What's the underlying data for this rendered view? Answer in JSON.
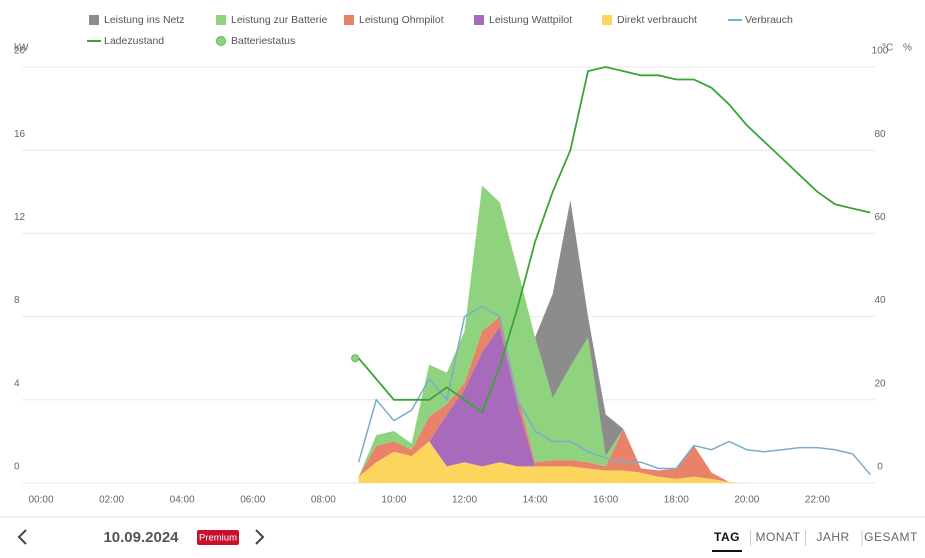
{
  "chart_data": {
    "type": "area",
    "y_label": "kW",
    "y2_label_1": "°C",
    "y2_label_2": "%",
    "x": [
      9,
      9.5,
      10,
      10.5,
      11,
      11.5,
      12,
      12.5,
      13,
      13.5,
      14,
      14.5,
      15,
      15.5,
      16,
      16.5,
      17,
      17.5,
      18,
      18.5,
      19,
      19.5,
      20,
      20.5,
      21,
      21.5,
      22,
      22.5,
      23,
      23.5
    ],
    "xlim": [
      0,
      24
    ],
    "xticks": [
      {
        "value": 0,
        "label": "00:00"
      },
      {
        "value": 2,
        "label": "02:00"
      },
      {
        "value": 4,
        "label": "04:00"
      },
      {
        "value": 6,
        "label": "06:00"
      },
      {
        "value": 8,
        "label": "08:00"
      },
      {
        "value": 10,
        "label": "10:00"
      },
      {
        "value": 12,
        "label": "12:00"
      },
      {
        "value": 14,
        "label": "14:00"
      },
      {
        "value": 16,
        "label": "16:00"
      },
      {
        "value": 18,
        "label": "18:00"
      },
      {
        "value": 20,
        "label": "20:00"
      },
      {
        "value": 22,
        "label": "22:00"
      }
    ],
    "ylim": [
      0,
      20
    ],
    "yticks": [
      0,
      4,
      8,
      12,
      16,
      20
    ],
    "y2lim": [
      0,
      100
    ],
    "y2ticks": [
      0,
      20,
      40,
      60,
      80,
      100
    ],
    "grid": true,
    "stacked": true,
    "series": [
      {
        "name": "Leistung ins Netz",
        "color": "#8c8c8c",
        "kind": "area",
        "values": [
          0,
          0,
          0,
          0,
          0,
          0,
          0,
          0,
          0,
          0,
          0,
          5,
          8,
          1,
          2,
          0,
          0,
          0,
          0,
          0,
          0,
          0,
          0,
          0,
          0,
          0,
          0,
          0,
          0,
          0
        ]
      },
      {
        "name": "Leistung zur Batterie",
        "color": "#90d37f",
        "kind": "area",
        "values": [
          0,
          0.5,
          0.5,
          0.3,
          2.5,
          1.5,
          2.5,
          7,
          5.5,
          6,
          6,
          3,
          4.5,
          6,
          0.5,
          0,
          0,
          0,
          0,
          0,
          0,
          0,
          0,
          0,
          0,
          0,
          0,
          0,
          0,
          0
        ]
      },
      {
        "name": "Leistung Ohmpilot",
        "color": "#e8836a",
        "kind": "area",
        "values": [
          0,
          0.8,
          0.5,
          0.3,
          1.2,
          0.5,
          0.3,
          1,
          0.5,
          0.5,
          0.2,
          0.3,
          0.3,
          0.3,
          0.2,
          2,
          0.2,
          0.3,
          0.5,
          1.5,
          0.3,
          0,
          0,
          0,
          0,
          0,
          0,
          0,
          0,
          0
        ]
      },
      {
        "name": "Leistung Wattpilot",
        "color": "#a86bbb",
        "kind": "area",
        "values": [
          0,
          0,
          0,
          0,
          0,
          2.5,
          3.5,
          5.5,
          6.5,
          3,
          0,
          0,
          0,
          0,
          0,
          0,
          0,
          0,
          0,
          0,
          0,
          0,
          0,
          0,
          0,
          0,
          0,
          0,
          0,
          0
        ]
      },
      {
        "name": "Direkt verbraucht",
        "color": "#fcd55c",
        "kind": "area",
        "values": [
          0.3,
          1,
          1.5,
          1.3,
          2,
          0.8,
          1,
          0.8,
          1,
          0.8,
          0.8,
          0.8,
          0.8,
          0.7,
          0.6,
          0.6,
          0.5,
          0.3,
          0.2,
          0.3,
          0.2,
          0.05,
          0,
          0,
          0,
          0,
          0,
          0,
          0,
          0
        ]
      },
      {
        "name": "Verbrauch",
        "color": "#78aecb",
        "kind": "line",
        "values": [
          1,
          4,
          3,
          3.5,
          5,
          4,
          8,
          8.5,
          8,
          4,
          2.5,
          2,
          2,
          1.5,
          1.2,
          1,
          1,
          0.7,
          0.7,
          1.8,
          1.6,
          2,
          1.6,
          1.5,
          1.6,
          1.7,
          1.7,
          1.6,
          1.4,
          0.4
        ]
      },
      {
        "name": "Ladezustand",
        "color": "#3aa535",
        "kind": "line",
        "axis": "y2",
        "values": [
          30,
          25,
          20,
          20,
          20,
          23,
          20,
          17,
          28,
          42,
          58,
          70,
          80,
          99,
          100,
          99,
          98,
          98,
          97,
          97,
          95,
          91,
          86,
          82,
          78,
          74,
          70,
          67,
          66,
          65
        ]
      },
      {
        "name": "Batteriestatus",
        "color": "#8fd282",
        "kind": "point",
        "axis": "y2",
        "x": [
          8.9
        ],
        "values": [
          30
        ]
      }
    ]
  },
  "ui": {
    "date": "10.09.2024",
    "badge": "Premium",
    "tabs": [
      "TAG",
      "MONAT",
      "JAHR",
      "GESAMT"
    ],
    "active_tab": 0
  }
}
